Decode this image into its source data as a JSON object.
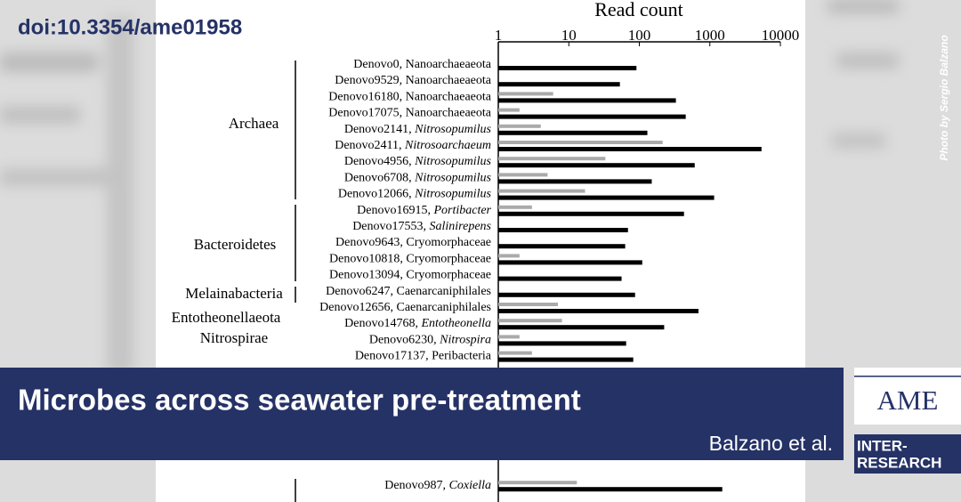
{
  "header": {
    "doi": "doi:10.3354/ame01958"
  },
  "photo_credit": "Photo by Sergio Balzano",
  "banner": {
    "title": "Microbes across seawater pre-treatment",
    "authors": "Balzano et al."
  },
  "logo": {
    "journal": "AME",
    "publisher": [
      "INTER-",
      "RESEARCH"
    ]
  },
  "chart_data": {
    "type": "bar",
    "orientation": "horizontal",
    "x_label": "Read count",
    "xscale": "log",
    "xlim": [
      1,
      10000
    ],
    "xticks": [
      1,
      10,
      100,
      1000,
      10000
    ],
    "groups": [
      "Archaea",
      "Bacteroidetes",
      "Melainabacteria",
      "Entotheonellaeota",
      "Nitrospirae"
    ],
    "categories": [
      "Denovo0, Nanoarchaeaeota",
      "Denovo9529, Nanoarchaeaeota",
      "Denovo16180, Nanoarchaeaeota",
      "Denovo17075, Nanoarchaeaeota",
      "Denovo2141, Nitrosopumilus",
      "Denovo2411, Nitrosoarchaeum",
      "Denovo4956, Nitrosopumilus",
      "Denovo6708, Nitrosopumilus",
      "Denovo12066, Nitrosopumilus",
      "Denovo16915, Portibacter",
      "Denovo17553, Salinirepens",
      "Denovo9643, Cryomorphaceae",
      "Denovo10818, Cryomorphaceae",
      "Denovo13094, Cryomorphaceae",
      "Denovo6247, Caenarcaniphilales",
      "Denovo12656, Caenarcaniphilales",
      "Denovo14768, Entotheonella",
      "Denovo6230, Nitrospira",
      "Denovo17137,  Peribacteria",
      "Denovo987, Coxiella"
    ],
    "italic_taxon": [
      false,
      false,
      false,
      false,
      true,
      true,
      true,
      true,
      true,
      true,
      true,
      false,
      false,
      false,
      false,
      false,
      true,
      true,
      false,
      true
    ],
    "series": [
      {
        "color": "#aaaaaa",
        "values": [
          null,
          null,
          6,
          2,
          4,
          214,
          33,
          5,
          17,
          3,
          null,
          null,
          2,
          null,
          null,
          7,
          8,
          2,
          3,
          13
        ]
      },
      {
        "color": "#000000",
        "values": [
          91,
          53,
          330,
          455,
          130,
          5400,
          610,
          150,
          1150,
          430,
          69,
          63,
          110,
          56,
          87,
          690,
          225,
          65,
          82,
          1500
        ]
      }
    ]
  }
}
